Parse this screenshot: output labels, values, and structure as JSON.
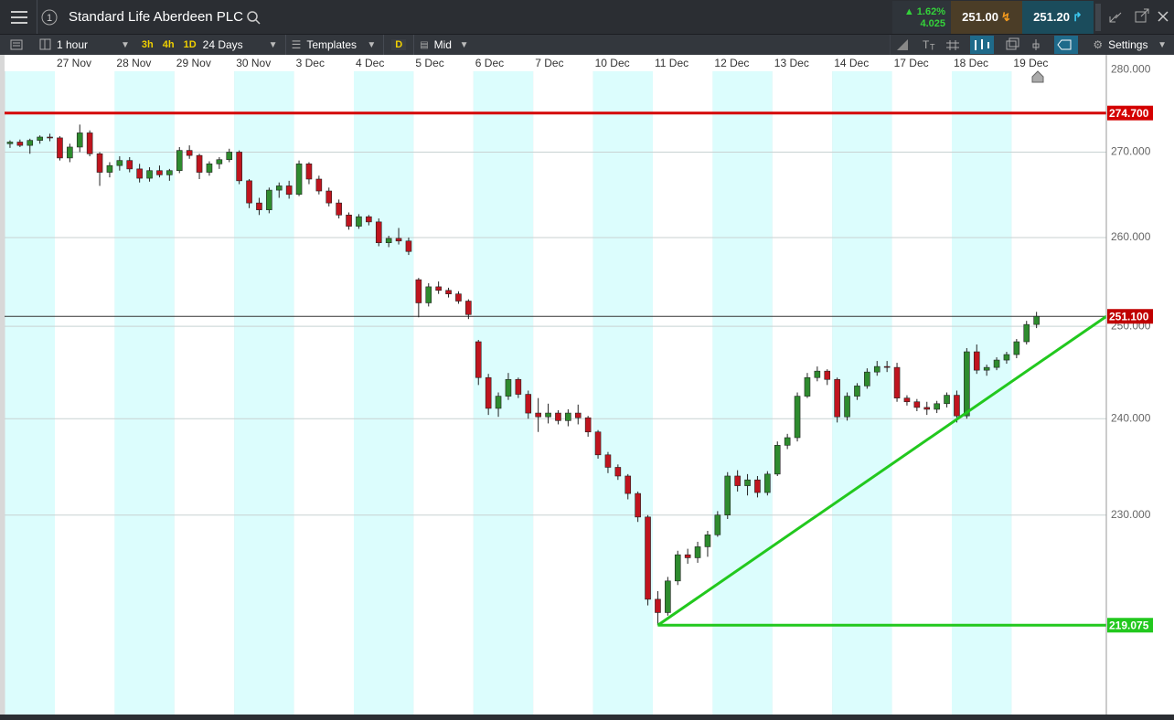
{
  "toolbar": {
    "window": "1",
    "instrument": "Standard Life Aberdeen PLC",
    "change_pct": "1.62%",
    "change": "4.025",
    "sell": "251.00",
    "buy": "251.20",
    "interval": "1 hour",
    "quick_intervals": [
      "3h",
      "4h",
      "1D"
    ],
    "range": "24 Days",
    "templates": "Templates",
    "d_button": "D",
    "price_type": "Mid",
    "settings": "Settings"
  },
  "chart_data": {
    "type": "candlestick",
    "log": true,
    "grid": true,
    "ylim": [
      210.6,
      281.4
    ],
    "yticks": [
      {
        "value": 280,
        "label": "280.000"
      },
      {
        "value": 270,
        "label": "270.000"
      },
      {
        "value": 260,
        "label": "260.000"
      },
      {
        "value": 250,
        "label": "250.000"
      },
      {
        "value": 240,
        "label": "240.000"
      },
      {
        "value": 230,
        "label": "230.000"
      }
    ],
    "up_color": "#2e8b2e",
    "down_color": "#c0141e",
    "band_colors": [
      "#dcfdfd",
      "#ffffff"
    ],
    "days": [
      {
        "label": null,
        "candles": [
          [
            271.0,
            271.4,
            270.5,
            271.2
          ],
          [
            271.2,
            271.5,
            270.6,
            270.8
          ],
          [
            270.8,
            271.6,
            269.8,
            271.4
          ],
          [
            271.4,
            272.0,
            271.0,
            271.8
          ],
          [
            271.8,
            272.2,
            271.3,
            271.7
          ]
        ]
      },
      {
        "label": "27 Nov",
        "candles": [
          [
            271.7,
            271.9,
            269.0,
            269.3
          ],
          [
            269.3,
            271.0,
            268.8,
            270.6
          ],
          [
            270.6,
            273.3,
            270.0,
            272.3
          ],
          [
            272.3,
            272.6,
            269.5,
            269.8
          ],
          [
            269.8,
            270.0,
            266.0,
            267.6
          ],
          [
            267.6,
            268.8,
            267.0,
            268.4
          ]
        ]
      },
      {
        "label": "28 Nov",
        "candles": [
          [
            268.4,
            269.5,
            267.8,
            269.0
          ],
          [
            269.0,
            269.4,
            267.6,
            268.0
          ],
          [
            268.0,
            268.6,
            266.4,
            266.9
          ],
          [
            266.9,
            268.2,
            266.5,
            267.8
          ],
          [
            267.8,
            268.4,
            267.0,
            267.3
          ],
          [
            267.3,
            268.0,
            266.6,
            267.8
          ]
        ]
      },
      {
        "label": "29 Nov",
        "candles": [
          [
            267.8,
            270.6,
            267.5,
            270.2
          ],
          [
            270.2,
            270.8,
            269.2,
            269.6
          ],
          [
            269.6,
            269.8,
            266.8,
            267.6
          ],
          [
            267.6,
            268.9,
            267.2,
            268.6
          ],
          [
            268.6,
            269.4,
            268.0,
            269.1
          ],
          [
            269.1,
            270.4,
            268.8,
            270.0
          ]
        ]
      },
      {
        "label": "30 Nov",
        "candles": [
          [
            270.0,
            270.2,
            266.2,
            266.6
          ],
          [
            266.6,
            266.8,
            263.4,
            264.0
          ],
          [
            264.0,
            264.6,
            262.6,
            263.2
          ],
          [
            263.2,
            265.8,
            262.8,
            265.5
          ],
          [
            265.5,
            266.4,
            264.6,
            266.0
          ],
          [
            266.0,
            266.6,
            264.5,
            265.0
          ]
        ]
      },
      {
        "label": "3 Dec",
        "candles": [
          [
            265.0,
            269.0,
            264.8,
            268.6
          ],
          [
            268.6,
            268.8,
            266.2,
            266.8
          ],
          [
            266.8,
            267.2,
            265.0,
            265.4
          ],
          [
            265.4,
            265.8,
            263.6,
            264.0
          ],
          [
            264.0,
            264.4,
            262.2,
            262.6
          ],
          [
            262.6,
            262.9,
            260.9,
            261.3
          ]
        ]
      },
      {
        "label": "4 Dec",
        "candles": [
          [
            261.3,
            262.7,
            261.0,
            262.4
          ],
          [
            262.4,
            262.6,
            261.4,
            261.8
          ],
          [
            261.8,
            262.2,
            259.0,
            259.4
          ],
          [
            259.4,
            260.2,
            258.9,
            259.9
          ],
          [
            259.9,
            261.1,
            259.2,
            259.6
          ],
          [
            259.6,
            260.0,
            258.0,
            258.4
          ]
        ]
      },
      {
        "label": "5 Dec",
        "candles": [
          [
            255.2,
            255.4,
            251.0,
            252.6
          ],
          [
            252.6,
            254.8,
            252.2,
            254.4
          ],
          [
            254.4,
            255.0,
            253.6,
            254.0
          ],
          [
            254.0,
            254.3,
            253.2,
            253.6
          ],
          [
            253.6,
            253.9,
            252.5,
            252.8
          ],
          [
            252.8,
            253.0,
            250.8,
            251.3
          ]
        ]
      },
      {
        "label": "6 Dec",
        "candles": [
          [
            248.3,
            248.5,
            243.6,
            244.4
          ],
          [
            244.4,
            244.8,
            240.4,
            241.1
          ],
          [
            241.1,
            242.8,
            240.2,
            242.4
          ],
          [
            242.4,
            244.9,
            242.0,
            244.2
          ],
          [
            244.2,
            244.4,
            242.2,
            242.6
          ],
          [
            242.6,
            243.0,
            240.0,
            240.6
          ]
        ]
      },
      {
        "label": "7 Dec",
        "candles": [
          [
            240.6,
            242.2,
            238.6,
            240.2
          ],
          [
            240.2,
            241.6,
            239.5,
            240.6
          ],
          [
            240.6,
            240.9,
            239.4,
            239.8
          ],
          [
            239.8,
            241.0,
            239.2,
            240.6
          ],
          [
            240.6,
            241.5,
            239.4,
            240.1
          ],
          [
            240.1,
            240.3,
            238.1,
            238.6
          ]
        ]
      },
      {
        "label": "10 Dec",
        "candles": [
          [
            238.6,
            238.8,
            235.8,
            236.2
          ],
          [
            236.2,
            236.5,
            234.3,
            234.9
          ],
          [
            234.9,
            235.2,
            233.6,
            234.0
          ],
          [
            234.0,
            234.2,
            231.6,
            232.2
          ],
          [
            232.2,
            232.4,
            229.3,
            229.8
          ],
          [
            229.8,
            230.0,
            221.0,
            221.6
          ]
        ]
      },
      {
        "label": "11 Dec",
        "candles": [
          [
            221.6,
            222.4,
            219.075,
            220.3
          ],
          [
            220.3,
            223.8,
            220.0,
            223.4
          ],
          [
            223.4,
            226.4,
            223.0,
            226.0
          ],
          [
            226.0,
            226.6,
            225.1,
            225.7
          ],
          [
            225.7,
            227.3,
            225.2,
            226.8
          ],
          [
            226.8,
            228.4,
            225.8,
            228.0
          ]
        ]
      },
      {
        "label": "12 Dec",
        "candles": [
          [
            228.0,
            230.4,
            227.8,
            230.0
          ],
          [
            230.0,
            234.4,
            229.6,
            234.0
          ],
          [
            234.0,
            234.6,
            232.4,
            233.0
          ],
          [
            233.0,
            234.2,
            232.0,
            233.6
          ],
          [
            233.6,
            234.0,
            231.8,
            232.3
          ],
          [
            232.3,
            234.5,
            232.0,
            234.2
          ]
        ]
      },
      {
        "label": "13 Dec",
        "candles": [
          [
            234.2,
            237.6,
            234.0,
            237.2
          ],
          [
            237.2,
            238.4,
            236.8,
            238.0
          ],
          [
            238.0,
            242.8,
            237.6,
            242.4
          ],
          [
            242.4,
            244.9,
            242.2,
            244.4
          ],
          [
            244.4,
            245.6,
            244.0,
            245.1
          ],
          [
            245.1,
            245.3,
            243.6,
            244.2
          ]
        ]
      },
      {
        "label": "14 Dec",
        "candles": [
          [
            244.2,
            244.4,
            239.6,
            240.2
          ],
          [
            240.2,
            242.8,
            239.8,
            242.4
          ],
          [
            242.4,
            243.8,
            242.0,
            243.5
          ],
          [
            243.5,
            245.4,
            243.2,
            245.0
          ],
          [
            245.0,
            246.2,
            244.6,
            245.6
          ],
          [
            245.6,
            246.2,
            245.0,
            245.5
          ]
        ]
      },
      {
        "label": "17 Dec",
        "candles": [
          [
            245.5,
            246.0,
            241.8,
            242.2
          ],
          [
            242.2,
            242.5,
            241.4,
            241.8
          ],
          [
            241.8,
            242.1,
            240.8,
            241.2
          ],
          [
            241.2,
            241.8,
            240.4,
            241.0
          ],
          [
            241.0,
            241.9,
            240.6,
            241.6
          ],
          [
            241.6,
            242.8,
            241.2,
            242.5
          ]
        ]
      },
      {
        "label": "18 Dec",
        "candles": [
          [
            242.5,
            243.0,
            239.6,
            240.3
          ],
          [
            240.3,
            247.6,
            240.0,
            247.2
          ],
          [
            247.2,
            248.0,
            244.8,
            245.2
          ],
          [
            245.2,
            245.8,
            244.6,
            245.5
          ],
          [
            245.5,
            246.6,
            245.2,
            246.3
          ],
          [
            246.3,
            247.2,
            245.9,
            246.9
          ]
        ]
      },
      {
        "label": "19 Dec",
        "candles": [
          [
            246.9,
            248.6,
            246.5,
            248.3
          ],
          [
            248.3,
            250.6,
            248.0,
            250.2
          ],
          [
            250.2,
            251.6,
            249.8,
            251.1
          ]
        ]
      }
    ],
    "hlines": [
      {
        "value": 274.7,
        "label": "274.700",
        "color": "#d40000",
        "box": "#d40000",
        "width": 3,
        "start": "left"
      },
      {
        "value": 251.1,
        "label": "251.100",
        "color": "#333333",
        "box": "#c00000",
        "width": 1,
        "start": "left"
      },
      {
        "value": 219.075,
        "label": "219.075",
        "color": "#22c81e",
        "box": "#22c81e",
        "width": 3,
        "start": "low"
      }
    ],
    "trendline": {
      "values": [
        219.075,
        251.1
      ],
      "color": "#22c81e"
    }
  }
}
